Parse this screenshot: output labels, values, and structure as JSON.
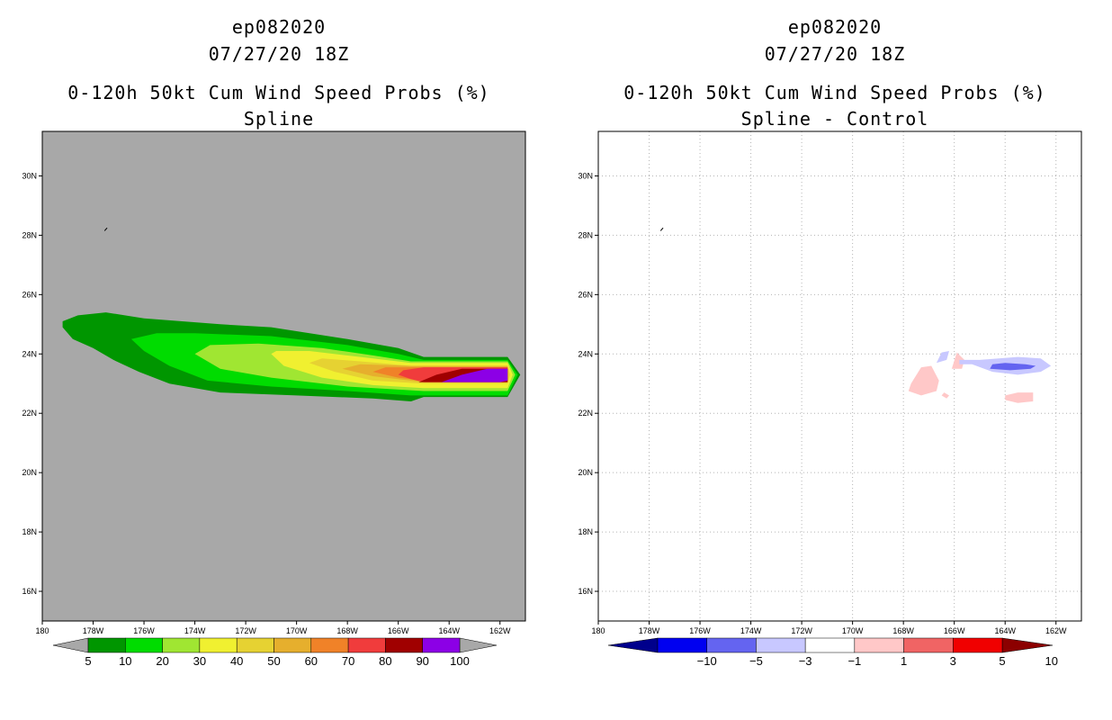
{
  "chart_data": [
    {
      "type": "heatmap",
      "storm_id": "ep082020",
      "datetime": "07/27/20 18Z",
      "title": "0-120h 50kt Cum Wind Speed Probs (%)",
      "subtitle": "Spline",
      "xlim": [
        180,
        161
      ],
      "ylim": [
        15,
        31.5
      ],
      "x_ticks": [
        "180",
        "178W",
        "176W",
        "174W",
        "172W",
        "170W",
        "168W",
        "166W",
        "164W",
        "162W"
      ],
      "y_ticks": [
        "16N",
        "18N",
        "20N",
        "22N",
        "24N",
        "26N",
        "28N",
        "30N"
      ],
      "grid": false,
      "background_color": "#a8a8a8",
      "colorbar": {
        "labels": [
          "5",
          "10",
          "20",
          "30",
          "40",
          "50",
          "60",
          "70",
          "80",
          "90",
          "100"
        ],
        "colors": [
          "#009600",
          "#00dc00",
          "#a0e632",
          "#f0f030",
          "#e6d232",
          "#e6af2d",
          "#f08228",
          "#f03c3c",
          "#a00000",
          "#8c00e6"
        ]
      },
      "contours": [
        {
          "level": 5,
          "color": "#009600",
          "polygon": [
            [
              179.2,
              24.9
            ],
            [
              178.8,
              24.5
            ],
            [
              178.0,
              24.2
            ],
            [
              177.2,
              23.8
            ],
            [
              176.2,
              23.4
            ],
            [
              175.0,
              23.0
            ],
            [
              173.0,
              22.7
            ],
            [
              170.0,
              22.6
            ],
            [
              167.0,
              22.5
            ],
            [
              165.5,
              22.4
            ],
            [
              165.0,
              22.55
            ],
            [
              161.7,
              22.55
            ],
            [
              161.2,
              23.3
            ],
            [
              161.7,
              23.9
            ],
            [
              165.0,
              23.9
            ],
            [
              166.0,
              24.2
            ],
            [
              168.0,
              24.5
            ],
            [
              171.0,
              24.9
            ],
            [
              173.0,
              25.0
            ],
            [
              176.0,
              25.2
            ],
            [
              177.5,
              25.4
            ],
            [
              178.6,
              25.3
            ],
            [
              179.2,
              25.1
            ]
          ]
        },
        {
          "level": 10,
          "color": "#00dc00",
          "polygon": [
            [
              176.5,
              24.5
            ],
            [
              176.0,
              24.1
            ],
            [
              175.0,
              23.6
            ],
            [
              173.5,
              23.1
            ],
            [
              171.0,
              22.9
            ],
            [
              168.0,
              22.75
            ],
            [
              165.5,
              22.6
            ],
            [
              161.7,
              22.6
            ],
            [
              161.3,
              23.3
            ],
            [
              161.7,
              23.8
            ],
            [
              165.0,
              23.8
            ],
            [
              166.0,
              24.0
            ],
            [
              168.0,
              24.3
            ],
            [
              171.0,
              24.6
            ],
            [
              174.0,
              24.7
            ],
            [
              175.5,
              24.7
            ]
          ]
        },
        {
          "level": 20,
          "color": "#a0e632",
          "polygon": [
            [
              174.0,
              24.0
            ],
            [
              173.0,
              23.5
            ],
            [
              171.0,
              23.2
            ],
            [
              168.0,
              22.9
            ],
            [
              165.0,
              22.75
            ],
            [
              161.7,
              22.75
            ],
            [
              161.4,
              23.3
            ],
            [
              161.7,
              23.75
            ],
            [
              165.5,
              23.75
            ],
            [
              167.0,
              23.95
            ],
            [
              169.0,
              24.2
            ],
            [
              171.5,
              24.35
            ],
            [
              173.4,
              24.3
            ]
          ]
        },
        {
          "level": 30,
          "color": "#f0f030",
          "polygon": [
            [
              171.0,
              24.0
            ],
            [
              170.5,
              23.6
            ],
            [
              169.0,
              23.2
            ],
            [
              167.0,
              22.95
            ],
            [
              165.0,
              22.85
            ],
            [
              161.7,
              22.85
            ],
            [
              161.5,
              23.3
            ],
            [
              161.7,
              23.7
            ],
            [
              165.5,
              23.7
            ],
            [
              167.5,
              23.9
            ],
            [
              169.5,
              24.1
            ],
            [
              170.8,
              24.1
            ]
          ]
        },
        {
          "level": 40,
          "color": "#e6d232",
          "polygon": [
            [
              169.5,
              23.7
            ],
            [
              168.5,
              23.4
            ],
            [
              167.0,
              23.1
            ],
            [
              165.0,
              23.0
            ],
            [
              161.7,
              23.0
            ],
            [
              161.6,
              23.3
            ],
            [
              161.7,
              23.6
            ],
            [
              165.5,
              23.6
            ],
            [
              167.5,
              23.75
            ],
            [
              169.0,
              23.85
            ]
          ]
        },
        {
          "level": 50,
          "color": "#e6af2d",
          "polygon": [
            [
              168.2,
              23.5
            ],
            [
              167.0,
              23.25
            ],
            [
              165.0,
              23.05
            ],
            [
              161.7,
              23.05
            ],
            [
              161.7,
              23.6
            ],
            [
              165.5,
              23.6
            ],
            [
              167.5,
              23.65
            ]
          ]
        },
        {
          "level": 60,
          "color": "#f08228",
          "polygon": [
            [
              167.0,
              23.4
            ],
            [
              166.0,
              23.2
            ],
            [
              165.0,
              23.1
            ],
            [
              161.7,
              23.1
            ],
            [
              161.7,
              23.55
            ],
            [
              165.5,
              23.55
            ],
            [
              166.5,
              23.55
            ]
          ]
        },
        {
          "level": 70,
          "color": "#f03c3c",
          "polygon": [
            [
              166.0,
              23.3
            ],
            [
              165.5,
              23.15
            ],
            [
              165.0,
              23.05
            ],
            [
              161.7,
              23.05
            ],
            [
              161.7,
              23.55
            ],
            [
              165.0,
              23.55
            ],
            [
              165.8,
              23.45
            ]
          ]
        },
        {
          "level": 80,
          "color": "#a00000",
          "polygon": [
            [
              165.2,
              23.05
            ],
            [
              163.5,
              23.05
            ],
            [
              161.7,
              23.05
            ],
            [
              161.7,
              23.5
            ],
            [
              163.5,
              23.5
            ],
            [
              164.5,
              23.3
            ]
          ]
        },
        {
          "level": 100,
          "color": "#8c00e6",
          "polygon": [
            [
              164.3,
              23.05
            ],
            [
              162.0,
              23.05
            ],
            [
              161.7,
              23.1
            ],
            [
              161.7,
              23.5
            ],
            [
              162.5,
              23.5
            ],
            [
              163.5,
              23.3
            ]
          ]
        }
      ]
    },
    {
      "type": "heatmap",
      "storm_id": "ep082020",
      "datetime": "07/27/20 18Z",
      "title": "0-120h 50kt Cum Wind Speed Probs (%)",
      "subtitle": "Spline - Control",
      "xlim": [
        180,
        161
      ],
      "ylim": [
        15,
        31.5
      ],
      "x_ticks": [
        "180",
        "178W",
        "176W",
        "174W",
        "172W",
        "170W",
        "168W",
        "166W",
        "164W",
        "162W"
      ],
      "y_ticks": [
        "16N",
        "18N",
        "20N",
        "22N",
        "24N",
        "26N",
        "28N",
        "30N"
      ],
      "grid": true,
      "background_color": "#ffffff",
      "colorbar": {
        "labels": [
          "-10",
          "-5",
          "-3",
          "-1",
          "1",
          "3",
          "5",
          "10"
        ],
        "colors": [
          "#00008c",
          "#0000f0",
          "#6464f0",
          "#c8c8ff",
          "#ffffff",
          "#ffc8c8",
          "#f06464",
          "#f00000",
          "#8c0000"
        ]
      },
      "contours": [
        {
          "level": 1,
          "color": "#ffc8c8",
          "polygon": [
            [
              167.7,
              23.0
            ],
            [
              167.3,
              23.55
            ],
            [
              166.9,
              23.6
            ],
            [
              166.6,
              23.1
            ],
            [
              166.7,
              22.75
            ],
            [
              167.3,
              22.6
            ],
            [
              167.8,
              22.75
            ]
          ]
        },
        {
          "level": 1,
          "color": "#ffc8c8",
          "polygon": [
            [
              166.5,
              22.6
            ],
            [
              166.3,
              22.5
            ],
            [
              166.2,
              22.6
            ],
            [
              166.4,
              22.7
            ]
          ]
        },
        {
          "level": 1,
          "color": "#ffc8c8",
          "polygon": [
            [
              166.1,
              23.5
            ],
            [
              165.9,
              24.05
            ],
            [
              165.6,
              23.8
            ],
            [
              165.7,
              23.5
            ]
          ]
        },
        {
          "level": 1,
          "color": "#ffc8c8",
          "polygon": [
            [
              164.0,
              22.6
            ],
            [
              163.5,
              22.7
            ],
            [
              162.9,
              22.7
            ],
            [
              162.9,
              22.4
            ],
            [
              163.5,
              22.35
            ],
            [
              164.0,
              22.45
            ]
          ]
        },
        {
          "level": -1,
          "color": "#c8c8ff",
          "polygon": [
            [
              165.8,
              23.65
            ],
            [
              165.3,
              23.65
            ],
            [
              164.5,
              23.4
            ],
            [
              163.5,
              23.3
            ],
            [
              162.6,
              23.4
            ],
            [
              162.2,
              23.6
            ],
            [
              162.6,
              23.85
            ],
            [
              163.5,
              23.9
            ],
            [
              165.0,
              23.8
            ],
            [
              165.8,
              23.8
            ]
          ]
        },
        {
          "level": -1,
          "color": "#c8c8ff",
          "polygon": [
            [
              166.7,
              23.7
            ],
            [
              166.5,
              24.05
            ],
            [
              166.2,
              24.1
            ],
            [
              166.3,
              23.8
            ]
          ]
        },
        {
          "level": -3,
          "color": "#6464f0",
          "polygon": [
            [
              164.6,
              23.5
            ],
            [
              163.8,
              23.45
            ],
            [
              163.0,
              23.5
            ],
            [
              162.8,
              23.6
            ],
            [
              163.2,
              23.65
            ],
            [
              164.0,
              23.7
            ],
            [
              164.5,
              23.65
            ]
          ]
        }
      ]
    }
  ]
}
